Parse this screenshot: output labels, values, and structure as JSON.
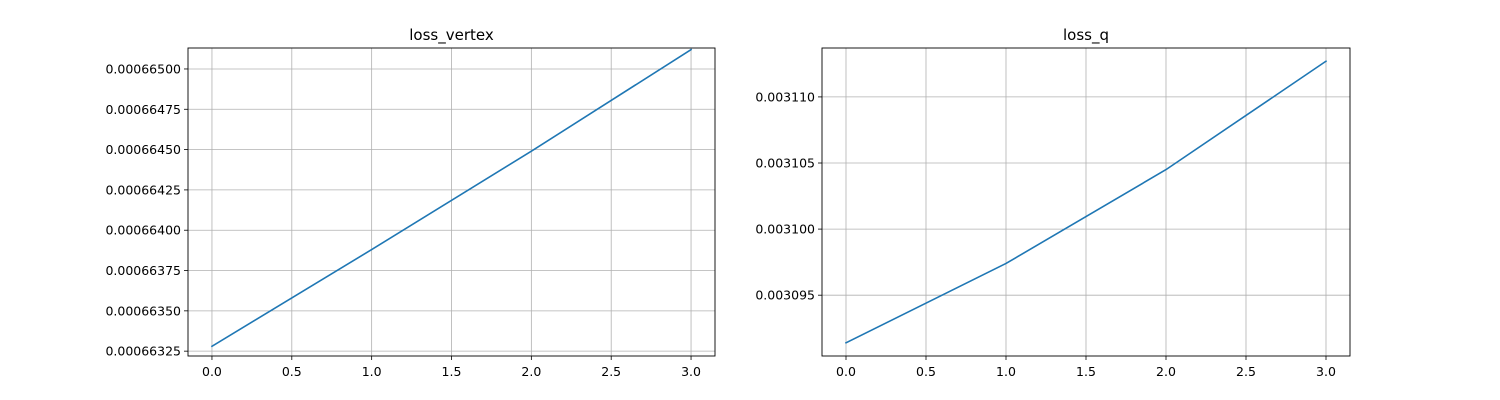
{
  "chart_data": [
    {
      "type": "line",
      "title": "loss_vertex",
      "xlabel": "",
      "ylabel": "",
      "grid": true,
      "xlim": [
        -0.15,
        3.15
      ],
      "ylim": [
        0.00066322,
        0.00066513
      ],
      "xticks": [
        0.0,
        0.5,
        1.0,
        1.5,
        2.0,
        2.5,
        3.0
      ],
      "xtick_labels": [
        "0.0",
        "0.5",
        "1.0",
        "1.5",
        "2.0",
        "2.5",
        "3.0"
      ],
      "yticks": [
        0.00066325,
        0.0006635,
        0.00066375,
        0.000664,
        0.00066425,
        0.0006645,
        0.00066475,
        0.000665
      ],
      "ytick_labels": [
        "0.00066325",
        "0.00066350",
        "0.00066375",
        "0.00066400",
        "0.00066425",
        "0.00066450",
        "0.00066475",
        "0.00066500"
      ],
      "series": [
        {
          "color": "#1f77b4",
          "x": [
            0,
            1,
            2,
            3
          ],
          "y": [
            0.00066328,
            0.00066388,
            0.00066449,
            0.00066512
          ]
        }
      ]
    },
    {
      "type": "line",
      "title": "loss_q",
      "xlabel": "",
      "ylabel": "",
      "grid": true,
      "xlim": [
        -0.15,
        3.15
      ],
      "ylim": [
        0.0030904,
        0.0031137
      ],
      "xticks": [
        0.0,
        0.5,
        1.0,
        1.5,
        2.0,
        2.5,
        3.0
      ],
      "xtick_labels": [
        "0.0",
        "0.5",
        "1.0",
        "1.5",
        "2.0",
        "2.5",
        "3.0"
      ],
      "yticks": [
        0.003095,
        0.0031,
        0.003105,
        0.00311
      ],
      "ytick_labels": [
        "0.003095",
        "0.003100",
        "0.003105",
        "0.003110"
      ],
      "series": [
        {
          "color": "#1f77b4",
          "x": [
            0,
            1,
            2,
            3
          ],
          "y": [
            0.0030914,
            0.0030974,
            0.0031045,
            0.0031127
          ]
        }
      ]
    }
  ]
}
